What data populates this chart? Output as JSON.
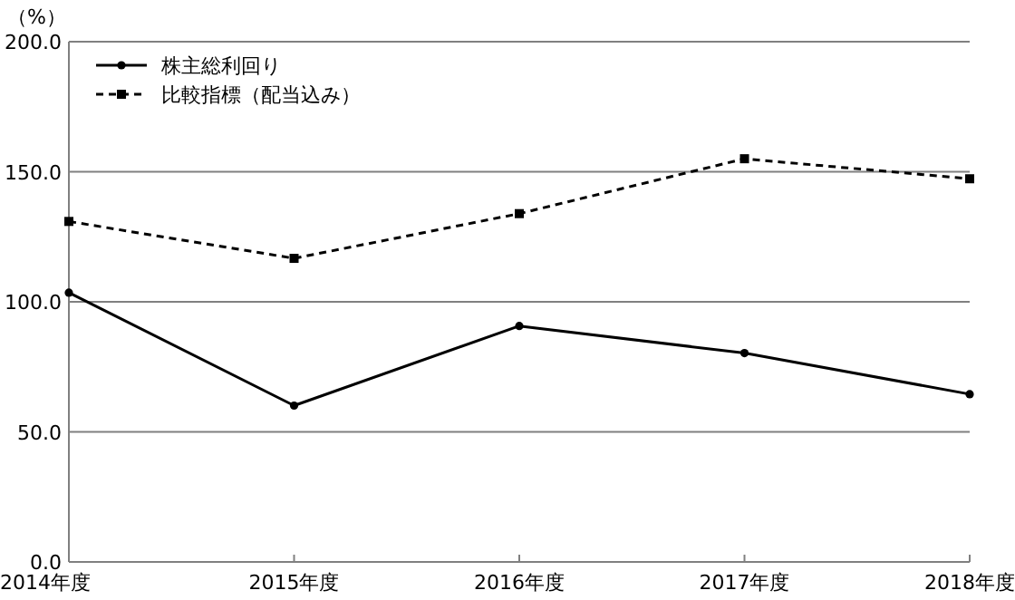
{
  "chart_data": {
    "type": "line",
    "ylabel": "（%）",
    "categories": [
      "2014年度",
      "2015年度",
      "2016年度",
      "2017年度",
      "2018年度"
    ],
    "series": [
      {
        "name": "株主総利回り",
        "color": "#000000",
        "marker": "circle",
        "line_style": "solid",
        "values": [
          103.5,
          60.1,
          90.7,
          80.3,
          64.5
        ]
      },
      {
        "name": "比較指標（配当込み）",
        "color": "#000000",
        "marker": "square",
        "line_style": "dashed",
        "values": [
          130.9,
          116.7,
          133.9,
          155.0,
          147.3
        ]
      }
    ],
    "ylim": [
      0,
      200
    ],
    "yticks": [
      {
        "value": 0,
        "label": "0.0"
      },
      {
        "value": 50,
        "label": "50.0"
      },
      {
        "value": 100,
        "label": "100.0"
      },
      {
        "value": 150,
        "label": "150.0"
      },
      {
        "value": 200,
        "label": "200.0"
      }
    ],
    "grid": "y",
    "legend": "top left"
  }
}
